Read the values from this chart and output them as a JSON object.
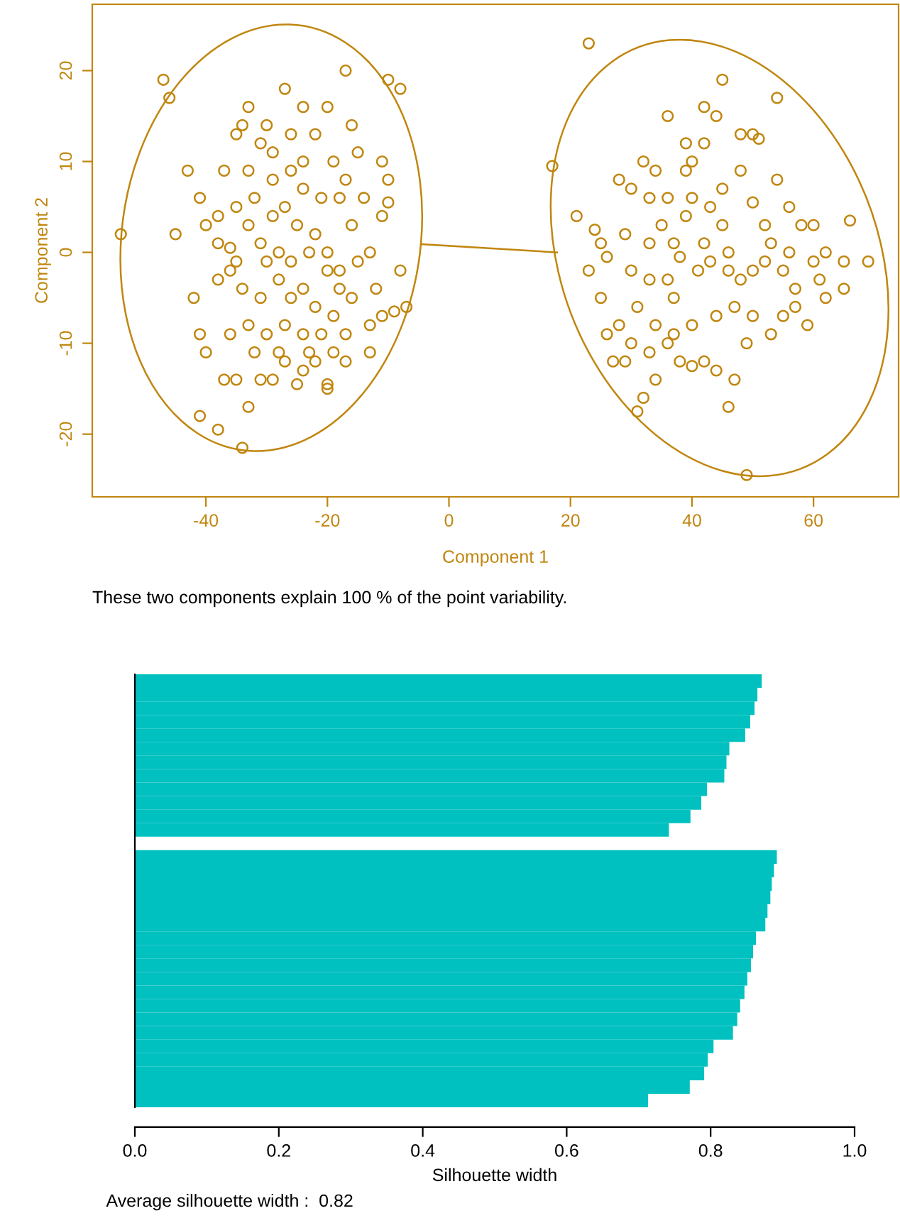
{
  "chart_data": [
    {
      "type": "scatter",
      "xlabel": "Component 1",
      "ylabel": "Component 2",
      "xlim": [
        -58.7,
        74
      ],
      "ylim": [
        -26.9,
        27.3
      ],
      "xticks": [
        -40,
        -20,
        0,
        20,
        40,
        60
      ],
      "yticks": [
        -20,
        -10,
        0,
        10,
        20
      ],
      "grid": false,
      "legend": false,
      "marker": "circle",
      "annotations": [
        "These two components explain 100 % of the point variability."
      ],
      "series": [
        {
          "color": "#c0860f",
          "x": [
            -54,
            -47,
            -46,
            -43,
            -45,
            -41,
            -40,
            -38,
            -42,
            -41,
            -40,
            -41,
            -38,
            -34,
            -33,
            -37,
            -35,
            -31,
            -29,
            -25,
            -20,
            -20,
            -27,
            -24,
            -17,
            -13,
            -19,
            -10,
            -8,
            -17,
            -27,
            -33,
            -34,
            -35,
            -30,
            -24,
            -20,
            -22,
            -26,
            -16,
            -15,
            -31,
            -29,
            -33,
            -37,
            -24,
            -19,
            -11,
            -10,
            -10,
            -11,
            -13,
            -12,
            -8,
            -7,
            -9,
            -11,
            -13,
            -16,
            -18,
            -20,
            -22,
            -25,
            -27,
            -29,
            -31,
            -33,
            -35,
            -36,
            -34,
            -31,
            -28,
            -26,
            -24,
            -22,
            -19,
            -21,
            -24,
            -27,
            -30,
            -33,
            -36,
            -32,
            -28,
            -23,
            -18,
            -15,
            -16,
            -18,
            -21,
            -24,
            -28,
            -30,
            -38,
            -35,
            -26,
            -20,
            -29,
            -22,
            -14,
            -17,
            -38,
            -36,
            -26,
            -32,
            -23,
            -17
          ],
          "values": [
            2,
            19,
            17,
            9,
            2,
            6,
            3,
            1,
            -5,
            -9,
            -11,
            -18,
            -19.5,
            -21.5,
            -17,
            -14,
            -14,
            -14,
            -14,
            -14.5,
            -14.5,
            -15,
            -12,
            -13,
            -12,
            -11,
            -11,
            19,
            18,
            20,
            18,
            16,
            14,
            13,
            14,
            16,
            16,
            13,
            13,
            14,
            11,
            12,
            8,
            9,
            9,
            10,
            10,
            10,
            8,
            5.5,
            4,
            0,
            -4,
            -2,
            -6,
            -6.5,
            -7,
            -8,
            -5,
            -2,
            0,
            2,
            3,
            5,
            4,
            1,
            3,
            5,
            -2,
            -4,
            -5,
            -3,
            -1,
            -4,
            -6,
            -7,
            -9,
            -9,
            -8,
            -9,
            -8,
            -9,
            -11,
            -11,
            -11,
            -4,
            -1,
            3,
            6,
            6,
            7,
            0,
            -1,
            4,
            -1,
            -5,
            -2,
            11,
            -12,
            6,
            8,
            -3,
            0.5,
            9,
            6,
            0,
            -9
          ]
        },
        {
          "color": "#c0860f",
          "x": [
            17,
            23,
            31,
            49,
            66,
            69,
            54,
            45,
            44,
            42,
            36,
            39,
            42,
            48,
            50,
            51,
            32,
            34,
            39,
            28,
            30,
            33,
            36,
            40,
            45,
            50,
            54,
            56,
            58,
            60,
            52,
            45,
            42,
            37,
            33,
            29,
            25,
            26,
            24,
            30,
            33,
            36,
            38,
            41,
            43,
            46,
            48,
            50,
            52,
            55,
            57,
            60,
            61,
            62,
            65,
            65,
            57,
            55,
            50,
            47,
            44,
            40,
            37,
            34,
            31,
            28,
            27,
            29,
            33,
            36,
            38,
            40,
            42,
            44,
            46,
            47,
            34,
            25,
            23,
            39,
            46,
            35,
            53,
            49,
            26,
            32,
            48,
            62,
            30,
            43,
            56,
            40,
            37,
            53,
            59,
            21
          ],
          "values": [
            9.5,
            23,
            -17.5,
            -24.5,
            3.5,
            -1,
            17,
            19,
            15,
            16,
            15,
            12,
            12,
            13,
            13,
            12.5,
            10,
            9,
            9,
            8,
            7,
            6,
            6,
            6,
            7,
            5.5,
            8,
            5,
            3,
            3,
            3,
            3,
            1,
            1,
            1,
            2,
            1,
            -0.5,
            2.5,
            -2,
            -3,
            -3,
            -0.5,
            -2,
            -1,
            -2,
            -3,
            -2,
            -1,
            -2,
            -4,
            -1,
            -3,
            -5,
            -1,
            -4,
            -6,
            -7,
            -7,
            -6,
            -7,
            -8,
            -9,
            -8,
            -6,
            -8,
            -12,
            -12,
            -11,
            -10,
            -12,
            -12.5,
            -12,
            -13,
            -17,
            -14,
            -14,
            -5,
            -2,
            4,
            0,
            3,
            -9,
            -10,
            -9,
            -16,
            9,
            0,
            -10,
            5,
            0,
            10,
            -5,
            1,
            -8,
            4
          ]
        },
        {
          "type": "line",
          "marker": "none",
          "color": "#c0860f",
          "x": [
            -4.5,
            17.8
          ],
          "values": [
            0.9,
            0.0
          ]
        }
      ]
    },
    {
      "type": "bar",
      "orientation": "horizontal",
      "xlabel": "Silhouette width",
      "color": "#00c0c0",
      "xlim": [
        0,
        1
      ],
      "tick_labels": "x",
      "grid": false,
      "legend": false,
      "xticks": [
        {
          "value": 0,
          "label": "0.0"
        },
        0.2,
        0.4,
        0.6,
        0.8,
        {
          "value": 1,
          "label": "1.0"
        }
      ],
      "annotations": [
        "Average silhouette width :  0.82"
      ],
      "categories": [
        null,
        null,
        null,
        null,
        null,
        null,
        null,
        null,
        null,
        null,
        null,
        null,
        null,
        null,
        null,
        null,
        null,
        null,
        null,
        null,
        null,
        null,
        null,
        null,
        null,
        null,
        null,
        null,
        null,
        null,
        null,
        null
      ],
      "values": [
        0.871,
        0.865,
        0.861,
        0.855,
        0.848,
        0.826,
        0.822,
        0.819,
        0.795,
        0.787,
        0.772,
        0.742,
        null,
        0.892,
        0.888,
        0.885,
        0.883,
        0.879,
        0.876,
        0.863,
        0.859,
        0.856,
        0.851,
        0.847,
        0.841,
        0.837,
        0.831,
        0.804,
        0.796,
        0.791,
        0.771,
        0.713
      ]
    }
  ]
}
